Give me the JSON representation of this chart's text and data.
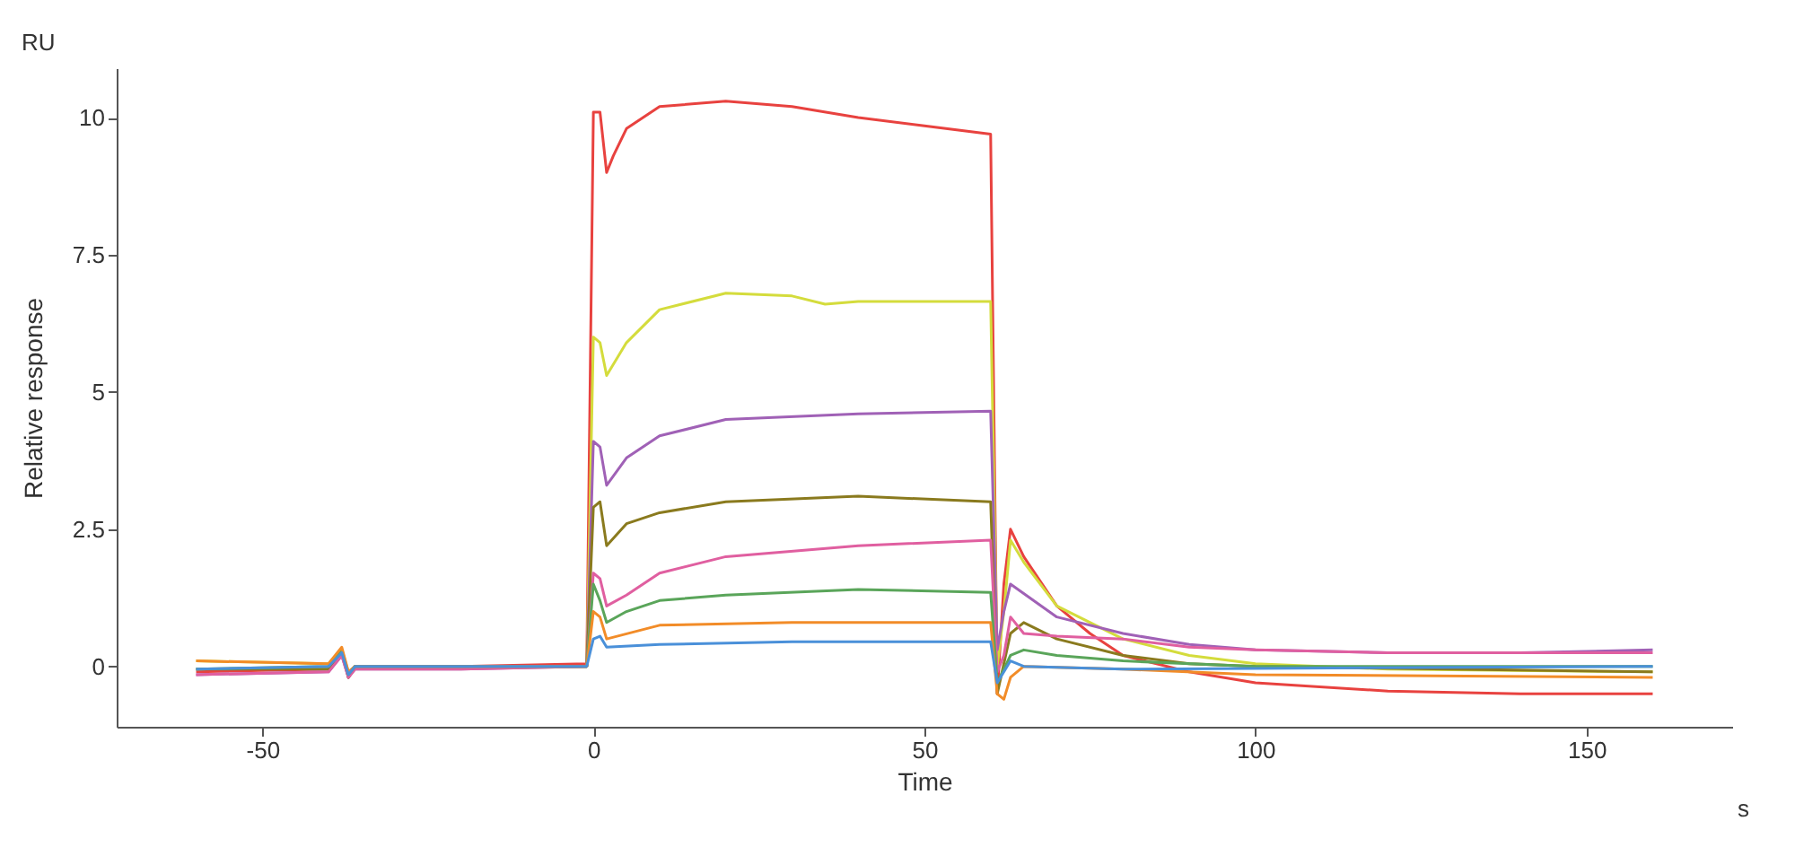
{
  "chart_data": {
    "type": "line",
    "xlabel": "Time",
    "ylabel": "Relative response",
    "annotations": [
      "RU",
      "s"
    ],
    "xlim": [
      -72,
      172
    ],
    "ylim": [
      -1.1,
      10.9
    ],
    "xticks": [
      -50,
      0,
      50,
      100,
      150
    ],
    "yticks": [
      0,
      2.5,
      5,
      7.5,
      10
    ],
    "grid": false,
    "legend": false,
    "marker": "none",
    "line_style": "solid",
    "series": [
      {
        "color": "#e8423f",
        "x": [
          -60,
          -40,
          -38,
          -37,
          -36,
          -20,
          -1,
          0,
          1,
          2,
          3,
          5,
          10,
          20,
          30,
          40,
          50,
          60,
          61,
          62,
          63,
          65,
          70,
          75,
          80,
          90,
          100,
          120,
          140,
          160
        ],
        "values": [
          -0.1,
          -0.05,
          0.3,
          -0.2,
          0,
          0,
          0.05,
          10.1,
          10.1,
          9.0,
          9.3,
          9.8,
          10.2,
          10.3,
          10.2,
          10.0,
          9.85,
          9.7,
          -0.5,
          1.5,
          2.5,
          2.0,
          1.1,
          0.6,
          0.2,
          -0.1,
          -0.3,
          -0.45,
          -0.5,
          -0.5
        ]
      },
      {
        "color": "#d4dc3c",
        "x": [
          -60,
          -40,
          -38,
          -37,
          -36,
          -20,
          -1,
          0,
          1,
          2,
          5,
          10,
          20,
          30,
          35,
          40,
          50,
          60,
          61,
          62,
          63,
          65,
          70,
          80,
          90,
          100,
          120,
          160
        ],
        "values": [
          0.1,
          0.05,
          0.3,
          -0.1,
          0,
          0,
          0,
          6.0,
          5.9,
          5.3,
          5.9,
          6.5,
          6.8,
          6.75,
          6.6,
          6.65,
          6.65,
          6.65,
          0,
          1.0,
          2.3,
          1.9,
          1.1,
          0.5,
          0.2,
          0.05,
          -0.05,
          -0.1
        ]
      },
      {
        "color": "#a061b6",
        "x": [
          -60,
          -40,
          -38,
          -37,
          -36,
          -20,
          -1,
          0,
          1,
          2,
          5,
          10,
          20,
          40,
          60,
          61,
          62,
          63,
          70,
          80,
          90,
          100,
          120,
          140,
          160
        ],
        "values": [
          -0.15,
          -0.1,
          0.2,
          -0.2,
          -0.05,
          -0.05,
          0,
          4.1,
          4.0,
          3.3,
          3.8,
          4.2,
          4.5,
          4.6,
          4.65,
          0.3,
          1.0,
          1.5,
          0.9,
          0.6,
          0.4,
          0.3,
          0.25,
          0.25,
          0.3
        ]
      },
      {
        "color": "#8a7a1e",
        "x": [
          -60,
          -40,
          -38,
          -37,
          -36,
          -20,
          -1,
          0,
          1,
          2,
          5,
          10,
          20,
          40,
          60,
          61,
          63,
          65,
          70,
          80,
          90,
          100,
          160
        ],
        "values": [
          -0.05,
          -0.05,
          0.3,
          -0.2,
          0,
          0,
          0,
          2.9,
          3.0,
          2.2,
          2.6,
          2.8,
          3.0,
          3.1,
          3.0,
          -0.5,
          0.6,
          0.8,
          0.5,
          0.2,
          0.05,
          0,
          -0.1
        ]
      },
      {
        "color": "#e05fa0",
        "x": [
          -60,
          -40,
          -38,
          -37,
          -36,
          -20,
          -1,
          0,
          1,
          2,
          5,
          10,
          20,
          40,
          60,
          61,
          62,
          63,
          65,
          70,
          80,
          90,
          100,
          120,
          160
        ],
        "values": [
          -0.15,
          -0.1,
          0.2,
          -0.2,
          -0.05,
          -0.05,
          0,
          1.7,
          1.6,
          1.1,
          1.3,
          1.7,
          2.0,
          2.2,
          2.3,
          -0.1,
          0.2,
          0.9,
          0.6,
          0.55,
          0.5,
          0.35,
          0.3,
          0.25,
          0.25
        ]
      },
      {
        "color": "#5aa55a",
        "x": [
          -60,
          -40,
          -38,
          -37,
          -36,
          -20,
          -1,
          0,
          1,
          2,
          5,
          10,
          20,
          40,
          60,
          61,
          63,
          65,
          70,
          80,
          100,
          160
        ],
        "values": [
          -0.05,
          0,
          0.3,
          -0.15,
          0,
          0,
          0,
          1.5,
          1.2,
          0.8,
          1.0,
          1.2,
          1.3,
          1.4,
          1.35,
          -0.3,
          0.2,
          0.3,
          0.2,
          0.1,
          0,
          0
        ]
      },
      {
        "color": "#f28c28",
        "x": [
          -60,
          -40,
          -38,
          -37,
          -36,
          -20,
          -1,
          0,
          1,
          2,
          10,
          30,
          60,
          61,
          62,
          63,
          65,
          80,
          100,
          160
        ],
        "values": [
          0.1,
          0.05,
          0.35,
          -0.1,
          0,
          0,
          0,
          1.0,
          0.9,
          0.5,
          0.75,
          0.8,
          0.8,
          -0.5,
          -0.6,
          -0.2,
          0,
          -0.05,
          -0.15,
          -0.2
        ]
      },
      {
        "color": "#4a90d9",
        "x": [
          -60,
          -40,
          -38,
          -37,
          -36,
          -20,
          -1,
          0,
          1,
          2,
          10,
          30,
          60,
          61,
          63,
          65,
          80,
          160
        ],
        "values": [
          -0.05,
          0,
          0.25,
          -0.15,
          0,
          0,
          0,
          0.5,
          0.55,
          0.35,
          0.4,
          0.45,
          0.45,
          -0.3,
          0.1,
          0,
          -0.05,
          0
        ]
      }
    ]
  }
}
